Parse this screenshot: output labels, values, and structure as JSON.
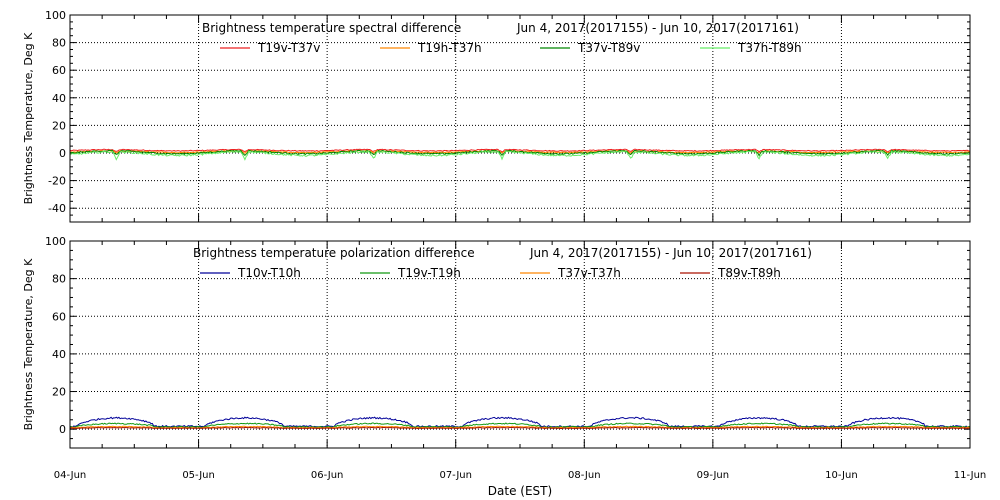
{
  "x_axis": {
    "label": "Date (EST)",
    "ticks": [
      "04-Jun",
      "05-Jun",
      "06-Jun",
      "07-Jun",
      "08-Jun",
      "09-Jun",
      "10-Jun",
      "11-Jun"
    ]
  },
  "chart_data": [
    {
      "type": "line",
      "title": "Brightness temperature spectral difference",
      "date_range": "Jun  4, 2017(2017155) - Jun 10, 2017(2017161)",
      "ylabel": "Brightness Temperature, Deg K",
      "xlabel": "Date (EST)",
      "xlim": [
        0,
        7
      ],
      "ylim": [
        -50,
        100
      ],
      "yticks": [
        -40,
        -20,
        0,
        20,
        40,
        60,
        80,
        100
      ],
      "grid": true,
      "series": [
        {
          "name": "T19v-T37v",
          "color": "#ee2222",
          "base": 2.0,
          "amp": 0.8,
          "dip": 1.5,
          "noise": 0.3
        },
        {
          "name": "T19h-T37h",
          "color": "#ff8800",
          "base": 1.0,
          "amp": 1.0,
          "dip": 1.5,
          "noise": 0.3
        },
        {
          "name": "T37v-T89v",
          "color": "#008800",
          "base": 0.5,
          "amp": 1.8,
          "dip": 3.0,
          "noise": 0.5
        },
        {
          "name": "T37h-T89h",
          "color": "#66ee66",
          "base": -0.5,
          "amp": 2.2,
          "dip": 5.0,
          "noise": 0.6
        }
      ]
    },
    {
      "type": "line",
      "title": "Brightness temperature polarization difference",
      "date_range": "Jun  4, 2017(2017155) - Jun 10, 2017(2017161)",
      "ylabel": "Brightness Temperature, Deg K",
      "xlabel": "Date (EST)",
      "xlim": [
        0,
        7
      ],
      "ylim": [
        -10,
        100
      ],
      "yticks": [
        0,
        20,
        40,
        60,
        80,
        100
      ],
      "grid": true,
      "series": [
        {
          "name": "T10v-T10h",
          "color": "#000099",
          "base": 1.5,
          "amp": 4.5,
          "dip": 0,
          "noise": 0.4
        },
        {
          "name": "T19v-T19h",
          "color": "#119911",
          "base": 1.2,
          "amp": 1.8,
          "dip": 0,
          "noise": 0.3
        },
        {
          "name": "T37v-T37h",
          "color": "#ff8800",
          "base": 0.8,
          "amp": 0.6,
          "dip": 0,
          "noise": 0.2
        },
        {
          "name": "T89v-T89h",
          "color": "#aa1100",
          "base": 0.5,
          "amp": 0.3,
          "dip": 0,
          "noise": 0.15
        }
      ]
    }
  ]
}
